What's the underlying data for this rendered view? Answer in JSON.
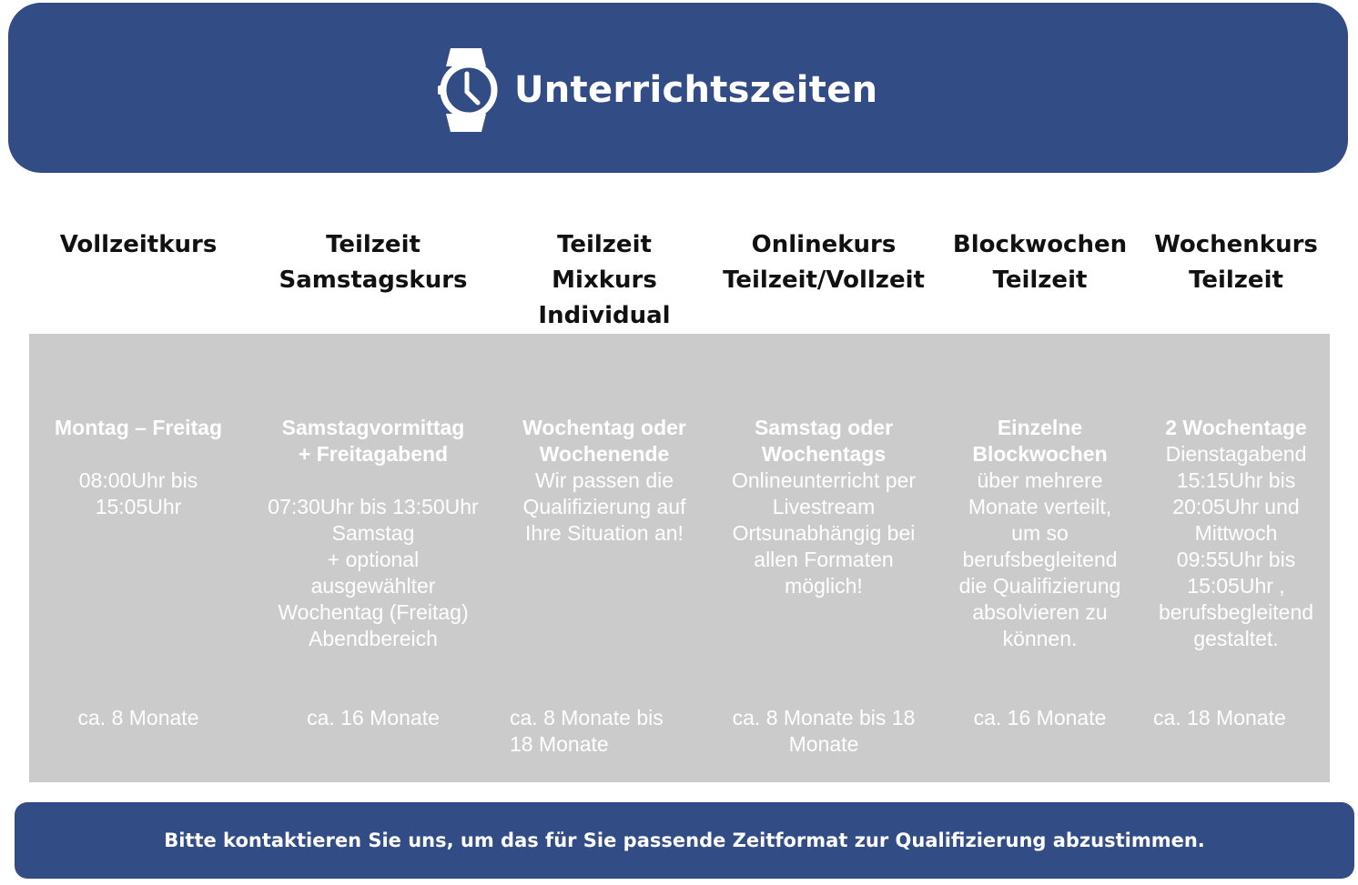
{
  "header": {
    "title": "Unterrichtszeiten",
    "icon": "wristwatch-icon",
    "color": "#324c86"
  },
  "columns": [
    {
      "head": [
        "Vollzeitkurs"
      ],
      "main": [
        {
          "t": "Montag – Freitag",
          "b": true
        },
        {
          "t": "",
          "b": false
        },
        {
          "t": "08:00Uhr bis",
          "b": false
        },
        {
          "t": "15:05Uhr",
          "b": false
        }
      ],
      "duration": [
        "ca. 8 Monate"
      ],
      "duration_align": "center"
    },
    {
      "head": [
        "Teilzeit",
        "Samstagskurs"
      ],
      "main": [
        {
          "t": "Samstagvormittag",
          "b": true
        },
        {
          "t": "+ Freitagabend",
          "b": true
        },
        {
          "t": "",
          "b": false
        },
        {
          "t": "07:30Uhr bis 13:50Uhr",
          "b": false
        },
        {
          "t": "Samstag",
          "b": false
        },
        {
          "t": "+ optional",
          "b": false
        },
        {
          "t": "ausgewählter",
          "b": false
        },
        {
          "t": "Wochentag (Freitag)",
          "b": false
        },
        {
          "t": "Abendbereich",
          "b": false
        }
      ],
      "duration": [
        "ca. 16 Monate"
      ],
      "duration_align": "center"
    },
    {
      "head": [
        "Teilzeit",
        "Mixkurs",
        "Individual"
      ],
      "main": [
        {
          "t": "Wochentag oder",
          "b": true
        },
        {
          "t": "Wochenende",
          "b": true
        },
        {
          "t": "Wir passen die",
          "b": false
        },
        {
          "t": "Qualifizierung auf",
          "b": false
        },
        {
          "t": "Ihre Situation an!",
          "b": false
        }
      ],
      "duration": [
        "ca. 8 Monate bis",
        "18 Monate"
      ],
      "duration_align": "left"
    },
    {
      "head": [
        "Onlinekurs",
        "Teilzeit/Vollzeit"
      ],
      "main": [
        {
          "t": "Samstag oder",
          "b": true
        },
        {
          "t": "Wochentags",
          "b": true
        },
        {
          "t": "Onlineunterricht per",
          "b": false
        },
        {
          "t": "Livestream",
          "b": false
        },
        {
          "t": "Ortsunabhängig bei",
          "b": false
        },
        {
          "t": "allen Formaten",
          "b": false
        },
        {
          "t": "möglich!",
          "b": false
        }
      ],
      "duration": [
        "ca. 8 Monate bis 18",
        "Monate"
      ],
      "duration_align": "center"
    },
    {
      "head": [
        "Blockwochen",
        "Teilzeit"
      ],
      "main": [
        {
          "t": "Einzelne",
          "b": true
        },
        {
          "t": "Blockwochen",
          "b": true
        },
        {
          "t": "über mehrere",
          "b": false
        },
        {
          "t": "Monate verteilt,",
          "b": false
        },
        {
          "t": "um so",
          "b": false
        },
        {
          "t": "berufsbegleitend",
          "b": false
        },
        {
          "t": "die Qualifizierung",
          "b": false
        },
        {
          "t": "absolvieren zu",
          "b": false
        },
        {
          "t": "können.",
          "b": false
        }
      ],
      "duration": [
        "ca. 16 Monate"
      ],
      "duration_align": "center"
    },
    {
      "head": [
        "Wochenkurs",
        "Teilzeit"
      ],
      "main": [
        {
          "t": "2 Wochentage",
          "b": true
        },
        {
          "t": "Dienstagabend",
          "b": false
        },
        {
          "t": "15:15Uhr bis",
          "b": false
        },
        {
          "t": "20:05Uhr und",
          "b": false
        },
        {
          "t": "Mittwoch",
          "b": false
        },
        {
          "t": "09:55Uhr bis",
          "b": false
        },
        {
          "t": "15:05Uhr ,",
          "b": false
        },
        {
          "t": "berufsbegleitend",
          "b": false
        },
        {
          "t": "gestaltet.",
          "b": false
        }
      ],
      "duration": [
        "ca. 18 Monate"
      ],
      "duration_align": "left"
    }
  ],
  "footer": {
    "text": "Bitte kontaktieren Sie uns, um das für Sie passende Zeitformat zur Qualifizierung abzustimmen."
  }
}
